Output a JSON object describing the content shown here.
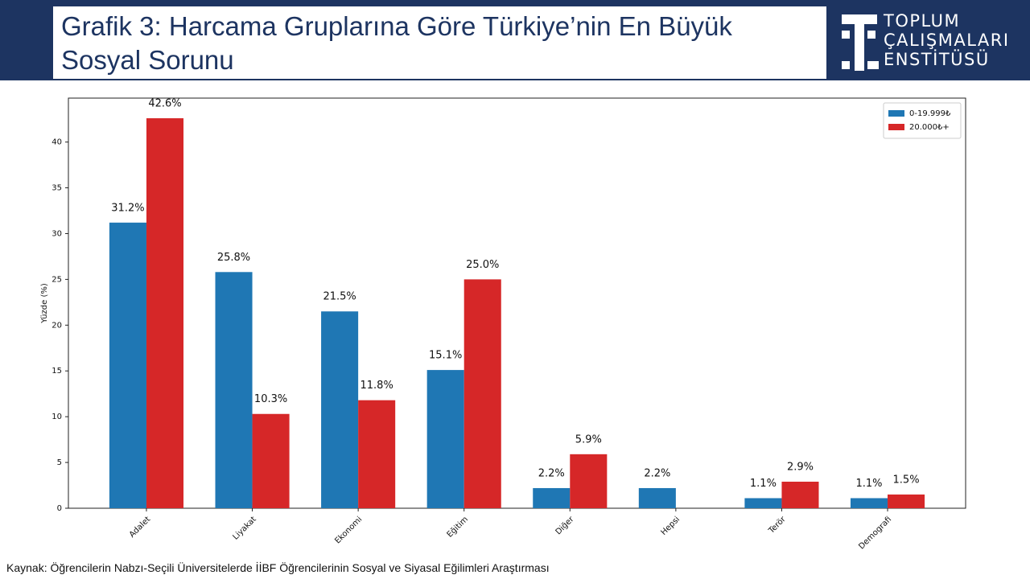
{
  "header": {
    "title_lines": [
      "Grafik 3: Harcama Gruplarına Göre Türkiye’nin En Büyük",
      "Sosyal Sorunu"
    ],
    "logo_lines": [
      "TOPLUM",
      "ÇALIŞMALARI",
      "ENSTİTÜSÜ"
    ]
  },
  "chart_data": {
    "type": "bar",
    "categories": [
      "Adalet",
      "Liyakat",
      "Ekonomi",
      "Eğitim",
      "Diğer",
      "Hepsi",
      "Terör",
      "Demografi"
    ],
    "series": [
      {
        "name": "0-19.999₺",
        "color": "#1f77b4",
        "values": [
          31.2,
          25.8,
          21.5,
          15.1,
          2.2,
          2.2,
          1.1,
          1.1
        ],
        "value_labels": [
          "31.2%",
          "25.8%",
          "21.5%",
          "15.1%",
          "2.2%",
          "2.2%",
          "1.1%",
          "1.1%"
        ]
      },
      {
        "name": "20.000₺+",
        "color": "#d62728",
        "values": [
          42.6,
          10.3,
          11.8,
          25.0,
          5.9,
          null,
          2.9,
          1.5
        ],
        "value_labels": [
          "42.6%",
          "10.3%",
          "11.8%",
          "25.0%",
          "5.9%",
          null,
          "2.9%",
          "1.5%"
        ]
      }
    ],
    "y_label": "Yüzde (%)",
    "ylim": [
      0,
      44.8
    ],
    "yticks": [
      0,
      5,
      10,
      15,
      20,
      25,
      30,
      35,
      40
    ],
    "legend": "upper right",
    "grid": false
  },
  "source": "Kaynak: Öğrencilerin Nabzı-Seçili Üniversitelerde İİBF Öğrencilerinin Sosyal ve Siyasal Eğilimleri Araştırması"
}
